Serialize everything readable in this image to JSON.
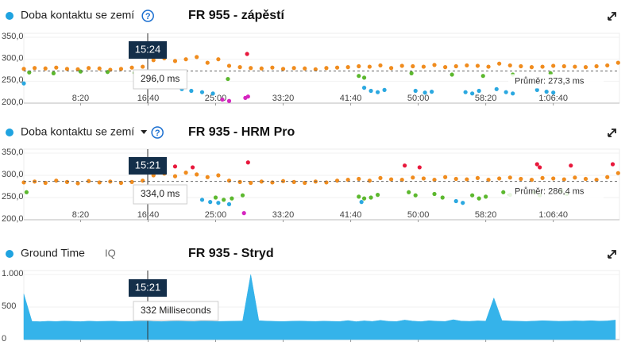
{
  "chart_data": [
    {
      "type": "scatter",
      "label": "Doba kontaktu se zemí",
      "help": "?",
      "title": "FR 955 - zápěstí",
      "xlim": [
        80,
        4490
      ],
      "ylim": [
        200,
        350
      ],
      "xticks": [
        {
          "value": 500,
          "label": "8:20"
        },
        {
          "value": 1000,
          "label": "16:40"
        },
        {
          "value": 1500,
          "label": "25:00"
        },
        {
          "value": 2000,
          "label": "33:20"
        },
        {
          "value": 2500,
          "label": "41:40"
        },
        {
          "value": 3000,
          "label": "50:00"
        },
        {
          "value": 3500,
          "label": "58:20"
        },
        {
          "value": 4000,
          "label": "1:06:40"
        }
      ],
      "yticks": [
        {
          "value": 200,
          "label": "200,0"
        },
        {
          "value": 250,
          "label": "250,0"
        },
        {
          "value": 300,
          "label": "300,0"
        },
        {
          "value": 350,
          "label": "350,0"
        }
      ],
      "tooltip_time": "15:24",
      "tooltip_value": "296,0 ms",
      "average": {
        "value": 273.3,
        "label": "Průměr: 273,3 ms"
      },
      "series": [
        {
          "color": "#f08c1e",
          "x": [
            80,
            160,
            240,
            320,
            400,
            480,
            560,
            640,
            720,
            800,
            880,
            960,
            1040,
            1120,
            1200,
            1280,
            1360,
            1440,
            1520,
            1600,
            1680,
            1760,
            1840,
            1920,
            2000,
            2080,
            2160,
            2240,
            2320,
            2400,
            2480,
            2560,
            2640,
            2720,
            2800,
            2880,
            2960,
            3040,
            3120,
            3200,
            3280,
            3360,
            3440,
            3520,
            3600,
            3680,
            3760,
            3840,
            3920,
            4000,
            4080,
            4160,
            4240,
            4320,
            4400,
            4480
          ],
          "values": [
            278,
            280,
            279,
            281,
            278,
            277,
            280,
            279,
            276,
            278,
            281,
            283,
            298,
            302,
            296,
            300,
            305,
            292,
            300,
            285,
            282,
            280,
            279,
            281,
            278,
            280,
            279,
            277,
            280,
            281,
            282,
            284,
            283,
            286,
            280,
            285,
            284,
            283,
            287,
            282,
            284,
            286,
            285,
            283,
            290,
            286,
            284,
            282,
            283,
            285,
            284,
            283,
            282,
            284,
            286,
            292
          ]
        },
        {
          "color": "#5cb82e",
          "x": [
            120,
            300,
            500,
            700,
            900,
            1591,
            2560,
            2600,
            2950,
            3250,
            3480,
            3700,
            3980
          ],
          "values": [
            270,
            268,
            272,
            271,
            269,
            255,
            262,
            258,
            268,
            265,
            262,
            265,
            268
          ]
        },
        {
          "color": "#2ba8e0",
          "x": [
            80,
            1250,
            1320,
            1400,
            1480,
            2600,
            2650,
            2700,
            2750,
            2980,
            3050,
            3100,
            3350,
            3400,
            3450,
            3580,
            3650,
            3700,
            3880,
            3950,
            4000
          ],
          "values": [
            245,
            232,
            228,
            225,
            222,
            235,
            228,
            225,
            230,
            228,
            224,
            226,
            225,
            222,
            228,
            232,
            225,
            222,
            230,
            226,
            224
          ]
        },
        {
          "color": "#d626c0",
          "x": [
            1550,
            1600,
            1720,
            1740
          ],
          "values": [
            208,
            205,
            212,
            215
          ]
        },
        {
          "color": "#e8183c",
          "x": [
            1733
          ],
          "values": [
            312
          ]
        }
      ]
    },
    {
      "type": "scatter",
      "label": "Doba kontaktu se zemí",
      "help": "?",
      "title": "FR 935 - HRM Pro",
      "xlim": [
        80,
        4490
      ],
      "ylim": [
        200,
        350
      ],
      "xticks": [
        {
          "value": 500,
          "label": "8:20"
        },
        {
          "value": 1000,
          "label": "16:40"
        },
        {
          "value": 1500,
          "label": "25:00"
        },
        {
          "value": 2000,
          "label": "33:20"
        },
        {
          "value": 2500,
          "label": "41:40"
        },
        {
          "value": 3000,
          "label": "50:00"
        },
        {
          "value": 3500,
          "label": "58:20"
        },
        {
          "value": 4000,
          "label": "1:06:40"
        }
      ],
      "yticks": [
        {
          "value": 200,
          "label": "200,0"
        },
        {
          "value": 250,
          "label": "250,0"
        },
        {
          "value": 300,
          "label": "300,0"
        },
        {
          "value": 350,
          "label": "350,0"
        }
      ],
      "tooltip_time": "15:21",
      "tooltip_value": "334,0 ms",
      "average": {
        "value": 286.4,
        "label": "Průměr: 286,4 ms"
      },
      "series": [
        {
          "color": "#f08c1e",
          "x": [
            80,
            160,
            240,
            320,
            400,
            480,
            560,
            640,
            720,
            800,
            880,
            960,
            1040,
            1120,
            1200,
            1280,
            1360,
            1440,
            1520,
            1600,
            1680,
            1760,
            1840,
            1920,
            2000,
            2080,
            2160,
            2240,
            2320,
            2400,
            2480,
            2560,
            2640,
            2720,
            2800,
            2880,
            2960,
            3040,
            3120,
            3200,
            3280,
            3360,
            3440,
            3520,
            3600,
            3680,
            3760,
            3840,
            3920,
            4000,
            4080,
            4160,
            4240,
            4320,
            4400,
            4480
          ],
          "values": [
            284,
            286,
            283,
            288,
            285,
            282,
            287,
            284,
            286,
            283,
            285,
            288,
            300,
            304,
            298,
            306,
            302,
            296,
            300,
            288,
            285,
            283,
            286,
            284,
            287,
            285,
            283,
            286,
            284,
            288,
            290,
            292,
            288,
            294,
            291,
            290,
            295,
            293,
            290,
            296,
            292,
            291,
            294,
            290,
            293,
            295,
            292,
            290,
            294,
            293,
            291,
            295,
            292,
            290,
            296,
            305
          ]
        },
        {
          "color": "#5cb82e",
          "x": [
            100,
            1050,
            1500,
            1560,
            1620,
            1700,
            2560,
            2600,
            2650,
            2700,
            2930,
            2980,
            3120,
            3180,
            3400,
            3450,
            3500,
            3630,
            3680,
            3860,
            3900,
            4060,
            4100
          ],
          "values": [
            262,
            270,
            250,
            245,
            248,
            255,
            252,
            248,
            250,
            256,
            262,
            255,
            258,
            250,
            255,
            248,
            252,
            262,
            256,
            262,
            255,
            265,
            258
          ]
        },
        {
          "color": "#2ba8e0",
          "x": [
            1400,
            1460,
            1520,
            1600,
            2580,
            3280,
            3330
          ],
          "values": [
            245,
            240,
            238,
            235,
            240,
            242,
            238
          ]
        },
        {
          "color": "#d626c0",
          "x": [
            1710
          ],
          "values": [
            215
          ]
        },
        {
          "color": "#e8183c",
          "x": [
            1200,
            1330,
            1740,
            2900,
            3010,
            3880,
            3900,
            4130,
            4440
          ],
          "values": [
            320,
            318,
            329,
            322,
            318,
            325,
            318,
            322,
            325
          ]
        }
      ]
    },
    {
      "type": "area",
      "label": "Ground Time",
      "badge": "IQ",
      "title": "FR 935 - Stryd",
      "xlim": [
        80,
        4490
      ],
      "ylim": [
        0,
        1000
      ],
      "xticks": [
        {
          "value": 500,
          "label": "8:20"
        },
        {
          "value": 1000,
          "label": "16:40"
        },
        {
          "value": 1500,
          "label": "25:00"
        },
        {
          "value": 2000,
          "label": "33:20"
        },
        {
          "value": 2500,
          "label": "41:40"
        },
        {
          "value": 3000,
          "label": "50:00"
        },
        {
          "value": 3500,
          "label": "58:20"
        },
        {
          "value": 4000,
          "label": "1:06:40"
        }
      ],
      "yticks": [
        0,
        500,
        {
          "value": 1000,
          "label": "1.000"
        }
      ],
      "tooltip_time": "15:21",
      "tooltip_value": "332 Milliseconds",
      "series": [
        {
          "color": "#35b3ea",
          "x": [
            80,
            140,
            200,
            260,
            320,
            380,
            440,
            500,
            560,
            620,
            680,
            740,
            800,
            860,
            920,
            980,
            1040,
            1100,
            1160,
            1220,
            1280,
            1340,
            1400,
            1460,
            1520,
            1580,
            1640,
            1700,
            1760,
            1820,
            1880,
            1940,
            2000,
            2060,
            2120,
            2180,
            2240,
            2300,
            2360,
            2420,
            2480,
            2540,
            2600,
            2660,
            2720,
            2780,
            2840,
            2900,
            2960,
            3020,
            3080,
            3140,
            3200,
            3260,
            3320,
            3380,
            3440,
            3500,
            3560,
            3620,
            3680,
            3740,
            3800,
            3860,
            3920,
            3980,
            4040,
            4100,
            4160,
            4220,
            4280,
            4340,
            4400,
            4460
          ],
          "values": [
            700,
            280,
            275,
            282,
            278,
            285,
            280,
            276,
            283,
            279,
            281,
            284,
            278,
            280,
            282,
            285,
            279,
            276,
            281,
            283,
            280,
            278,
            284,
            282,
            279,
            281,
            283,
            286,
            1000,
            290,
            284,
            280,
            278,
            282,
            285,
            281,
            279,
            283,
            280,
            278,
            292,
            275,
            288,
            279,
            295,
            281,
            278,
            300,
            284,
            276,
            290,
            282,
            279,
            305,
            283,
            280,
            288,
            284,
            640,
            292,
            286,
            282,
            279,
            284,
            290,
            286,
            281,
            283,
            288,
            285,
            290,
            284,
            287,
            300
          ]
        }
      ]
    }
  ]
}
